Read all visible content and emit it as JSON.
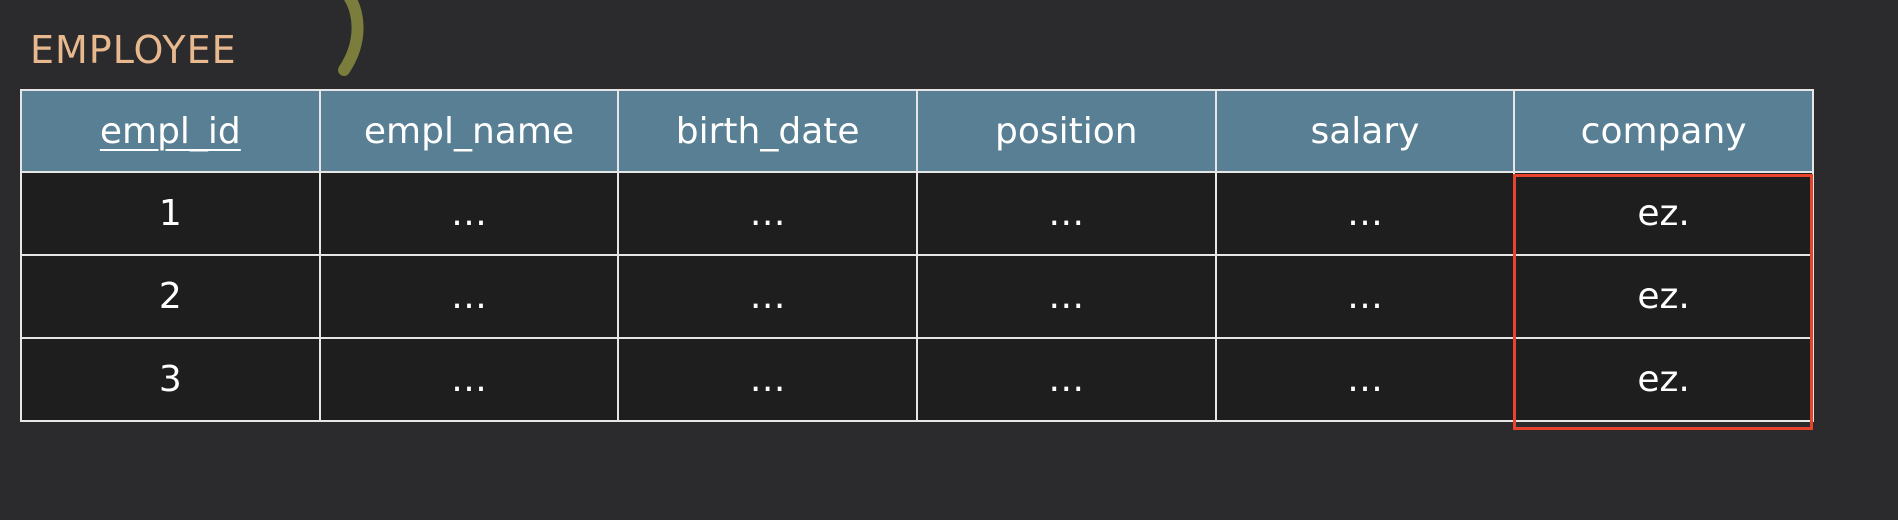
{
  "title": "EMPLOYEE",
  "columns": [
    {
      "label": "empl_id",
      "primary_key": true
    },
    {
      "label": "empl_name",
      "primary_key": false
    },
    {
      "label": "birth_date",
      "primary_key": false
    },
    {
      "label": "position",
      "primary_key": false
    },
    {
      "label": "salary",
      "primary_key": false
    },
    {
      "label": "company",
      "primary_key": false
    }
  ],
  "rows": [
    [
      "1",
      "…",
      "…",
      "…",
      "…",
      "ez."
    ],
    [
      "2",
      "…",
      "…",
      "…",
      "…",
      "ez."
    ],
    [
      "3",
      "…",
      "…",
      "…",
      "…",
      "ez."
    ]
  ],
  "highlight": {
    "column": "company",
    "color": "#e8432c"
  },
  "colors": {
    "background": "#2b2a2c",
    "header": "#587f93",
    "cell": "#1f1e1f",
    "title": "#e8b98f",
    "stroke": "#7a7d3c"
  }
}
